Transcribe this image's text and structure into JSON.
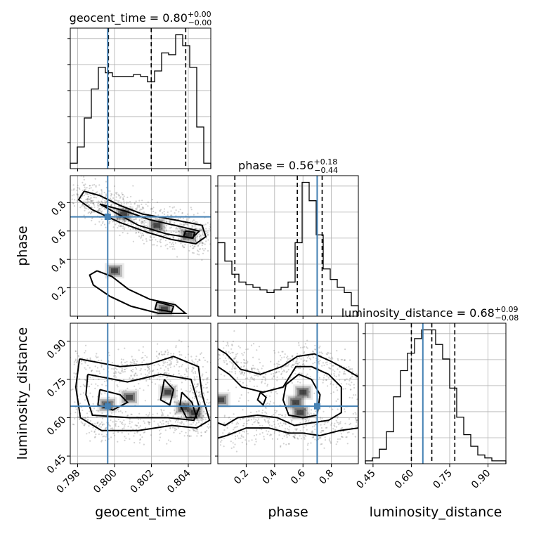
{
  "chart_data": {
    "type": "corner",
    "parameters": [
      {
        "name": "geocent_time",
        "label": "geocent_time",
        "title": "geocent_time = 0.80",
        "title_plus": "+0.00",
        "title_minus": "−0.00",
        "truth": 0.79963,
        "quantiles": [
          0.79967,
          0.80199,
          0.80386
        ],
        "range": [
          0.7976,
          0.80522
        ],
        "ticks": [
          0.798,
          0.8,
          0.802,
          0.804
        ],
        "tick_labels": [
          "0.798",
          "0.800",
          "0.802",
          "0.804"
        ],
        "hist": {
          "edges_start": 0.7976,
          "bin_width": 0.000381,
          "counts": [
            0.3,
            1.2,
            2.8,
            4.4,
            5.6,
            5.3,
            5.1,
            5.1,
            5.1,
            5.2,
            5.1,
            4.8,
            5.4,
            6.4,
            6.3,
            7.4,
            6.8,
            5.6,
            2.3,
            0.3
          ]
        }
      },
      {
        "name": "phase",
        "label": "phase",
        "title": "phase = 0.56",
        "title_plus": "+0.18",
        "title_minus": "−0.44",
        "truth": 0.7,
        "quantiles": [
          0.12,
          0.56,
          0.735
        ],
        "range": [
          0.0,
          0.99
        ],
        "ticks": [
          0.2,
          0.4,
          0.6,
          0.8
        ],
        "tick_labels": [
          "0.2",
          "0.4",
          "0.6",
          "0.8"
        ],
        "hist": {
          "edges_start": 0.0,
          "bin_width": 0.0495,
          "counts": [
            2.8,
            2.1,
            1.6,
            1.3,
            1.2,
            1.1,
            1.0,
            0.9,
            1.0,
            1.1,
            1.3,
            2.8,
            5.1,
            4.4,
            3.1,
            1.8,
            1.4,
            1.1,
            0.9,
            0.4
          ]
        }
      },
      {
        "name": "luminosity_distance",
        "label": "luminosity_distance",
        "title": "luminosity_distance = 0.68",
        "title_plus": "+0.09",
        "title_minus": "−0.08",
        "truth": 0.645,
        "quantiles": [
          0.6,
          0.68,
          0.77
        ],
        "range": [
          0.42,
          0.97
        ],
        "ticks": [
          0.45,
          0.6,
          0.75,
          0.9
        ],
        "tick_labels": [
          "0.45",
          "0.60",
          "0.75",
          "0.90"
        ],
        "hist": {
          "edges_start": 0.42,
          "bin_width": 0.0275,
          "counts": [
            0.1,
            0.2,
            0.5,
            1.1,
            2.3,
            3.2,
            3.8,
            4.3,
            4.6,
            4.6,
            4.1,
            3.6,
            2.6,
            1.6,
            1.0,
            0.6,
            0.3,
            0.2,
            0.1,
            0.1
          ]
        }
      }
    ],
    "panels_2d": [
      {
        "x": "geocent_time",
        "y": "phase",
        "density_peaks": [
          [
            0.8005,
            0.72
          ],
          [
            0.8023,
            0.64
          ],
          [
            0.804,
            0.57
          ],
          [
            0.8027,
            0.05
          ],
          [
            0.8,
            0.32
          ]
        ],
        "contours": [
          [
            [
              0.79835,
              0.88
            ],
            [
              0.7992,
              0.85
            ],
            [
              0.8003,
              0.78
            ],
            [
              0.8015,
              0.72
            ],
            [
              0.8032,
              0.68
            ],
            [
              0.80475,
              0.64
            ],
            [
              0.80495,
              0.56
            ],
            [
              0.8044,
              0.51
            ],
            [
              0.8031,
              0.54
            ],
            [
              0.8018,
              0.59
            ],
            [
              0.8003,
              0.66
            ],
            [
              0.7988,
              0.75
            ],
            [
              0.79805,
              0.82
            ],
            [
              0.79835,
              0.88
            ]
          ],
          [
            [
              0.7992,
              0.79
            ],
            [
              0.8006,
              0.74
            ],
            [
              0.8019,
              0.68
            ],
            [
              0.8036,
              0.63
            ],
            [
              0.8046,
              0.6
            ],
            [
              0.8042,
              0.55
            ],
            [
              0.8028,
              0.58
            ],
            [
              0.8013,
              0.64
            ],
            [
              0.8
            ],
            [
              0.7992,
              0.79
            ]
          ],
          [
            [
              0.80385,
              0.6
            ],
            [
              0.80435,
              0.59
            ],
            [
              0.80425,
              0.55
            ],
            [
              0.80375,
              0.56
            ],
            [
              0.80385,
              0.6
            ]
          ],
          [
            [
              0.79905,
              0.32
            ],
            [
              0.79985,
              0.28
            ],
            [
              0.80075,
              0.19
            ],
            [
              0.8019,
              0.12
            ],
            [
              0.8033,
              0.08
            ],
            [
              0.80385,
              0.02
            ],
            [
              0.8024,
              0.02
            ],
            [
              0.8009,
              0.07
            ],
            [
              0.79975,
              0.14
            ],
            [
              0.79885,
              0.22
            ],
            [
              0.79865,
              0.29
            ],
            [
              0.79905,
              0.32
            ]
          ],
          [
            [
              0.8023,
              0.1
            ],
            [
              0.8032,
              0.07
            ],
            [
              0.8031,
              0.03
            ],
            [
              0.8022,
              0.05
            ],
            [
              0.8023,
              0.1
            ]
          ]
        ]
      },
      {
        "x": "geocent_time",
        "y": "luminosity_distance",
        "density_peaks": [
          [
            0.7996,
            0.65
          ],
          [
            0.8008,
            0.68
          ],
          [
            0.8029,
            0.7
          ],
          [
            0.80375,
            0.64
          ],
          [
            0.80435,
            0.62
          ]
        ],
        "contours": [
          [
            [
              0.7981,
              0.83
            ],
            [
              0.8003,
              0.8
            ],
            [
              0.8019,
              0.81
            ],
            [
              0.8032,
              0.84
            ],
            [
              0.80455,
              0.8
            ],
            [
              0.80475,
              0.69
            ],
            [
              0.80515,
              0.59
            ],
            [
              0.80445,
              0.56
            ],
            [
              0.8031,
              0.57
            ],
            [
              0.8013,
              0.55
            ],
            [
              0.7993,
              0.55
            ],
            [
              0.79815,
              0.6
            ],
            [
              0.7979,
              0.72
            ],
            [
              0.7981,
              0.83
            ]
          ],
          [
            [
              0.79855,
              0.77
            ],
            [
              0.8007,
              0.74
            ],
            [
              0.8025,
              0.77
            ],
            [
              0.80415,
              0.75
            ],
            [
              0.8046,
              0.64
            ],
            [
              0.8043,
              0.59
            ],
            [
              0.8029,
              0.6
            ],
            [
              0.8008,
              0.6
            ],
            [
              0.7988,
              0.61
            ],
            [
              0.79845,
              0.69
            ],
            [
              0.79855,
              0.77
            ]
          ],
          [
            [
              0.7992,
              0.71
            ],
            [
              0.8003,
              0.69
            ],
            [
              0.8007,
              0.66
            ],
            [
              0.7999,
              0.63
            ],
            [
              0.7991,
              0.65
            ],
            [
              0.7992,
              0.71
            ]
          ],
          [
            [
              0.8027,
              0.75
            ],
            [
              0.8032,
              0.71
            ],
            [
              0.803,
              0.65
            ],
            [
              0.8025,
              0.67
            ],
            [
              0.8027,
              0.75
            ]
          ],
          [
            [
              0.80365,
              0.7
            ],
            [
              0.8042,
              0.66
            ],
            [
              0.80445,
              0.6
            ],
            [
              0.8039,
              0.6
            ],
            [
              0.80355,
              0.65
            ],
            [
              0.80365,
              0.7
            ]
          ]
        ]
      },
      {
        "x": "phase",
        "y": "luminosity_distance",
        "density_peaks": [
          [
            0.55,
            0.66
          ],
          [
            0.6,
            0.7
          ],
          [
            0.58,
            0.62
          ],
          [
            0.02,
            0.67
          ]
        ],
        "contours": [
          [
            [
              0.0,
              0.87
            ],
            [
              0.06,
              0.85
            ],
            [
              0.16,
              0.79
            ],
            [
              0.3,
              0.77
            ],
            [
              0.45,
              0.8
            ],
            [
              0.56,
              0.84
            ],
            [
              0.68,
              0.85
            ],
            [
              0.8,
              0.82
            ],
            [
              0.9,
              0.79
            ],
            [
              0.99,
              0.76
            ],
            [
              0.99,
              0.56
            ],
            [
              0.86,
              0.55
            ],
            [
              0.72,
              0.53
            ],
            [
              0.6,
              0.54
            ],
            [
              0.5,
              0.54
            ],
            [
              0.36,
              0.56
            ],
            [
              0.2,
              0.56
            ],
            [
              0.06,
              0.53
            ],
            [
              0.0,
              0.52
            ]
          ],
          [
            [
              0.0,
              0.8
            ],
            [
              0.08,
              0.77
            ],
            [
              0.17,
              0.72
            ],
            [
              0.32,
              0.7
            ],
            [
              0.46,
              0.72
            ],
            [
              0.55,
              0.8
            ],
            [
              0.66,
              0.8
            ],
            [
              0.78,
              0.77
            ],
            [
              0.87,
              0.72
            ],
            [
              0.87,
              0.62
            ],
            [
              0.78,
              0.59
            ],
            [
              0.66,
              0.58
            ],
            [
              0.54,
              0.57
            ],
            [
              0.42,
              0.6
            ],
            [
              0.28,
              0.61
            ],
            [
              0.14,
              0.6
            ],
            [
              0.05,
              0.57
            ],
            [
              0.0,
              0.58
            ]
          ],
          [
            [
              0.48,
              0.73
            ],
            [
              0.57,
              0.77
            ],
            [
              0.66,
              0.75
            ],
            [
              0.72,
              0.69
            ],
            [
              0.7,
              0.61
            ],
            [
              0.6,
              0.6
            ],
            [
              0.5,
              0.61
            ],
            [
              0.46,
              0.67
            ],
            [
              0.48,
              0.73
            ]
          ],
          [
            [
              0.3,
              0.7
            ],
            [
              0.34,
              0.68
            ],
            [
              0.32,
              0.65
            ],
            [
              0.28,
              0.67
            ],
            [
              0.3,
              0.7
            ]
          ]
        ]
      }
    ]
  }
}
